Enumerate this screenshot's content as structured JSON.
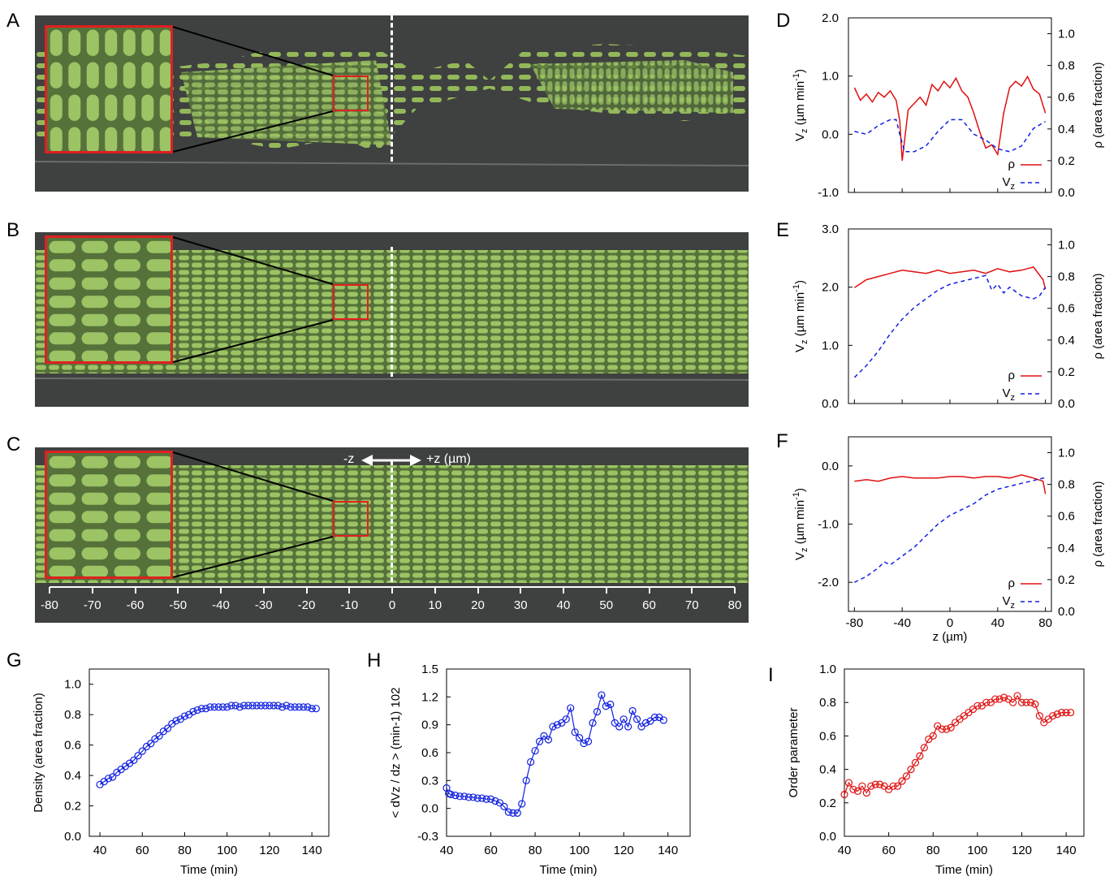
{
  "panels": {
    "A": "A",
    "B": "B",
    "C": "C",
    "D": "D",
    "E": "E",
    "F": "F",
    "G": "G",
    "H": "H",
    "I": "I"
  },
  "micrograph": {
    "direction_left": "-z",
    "direction_right": "+z (µm)",
    "ticks": [
      "-80",
      "-70",
      "-60",
      "-50",
      "-40",
      "-30",
      "-20",
      "-10",
      "0",
      "10",
      "20",
      "30",
      "40",
      "50",
      "60",
      "70",
      "80"
    ]
  },
  "profiles": {
    "left_axis_label": "V",
    "left_axis_sub": "z",
    "left_axis_unit": " (µm min",
    "left_axis_exp": "-1",
    "right_axis_label": "ρ (area fraction)",
    "legend_rho": "ρ",
    "legend_vz": "V",
    "legend_vz_sub": "z",
    "x_label": "z (µm)",
    "right_ticks": [
      "1.0",
      "0.8",
      "0.6",
      "0.4",
      "0.2",
      "0.0"
    ],
    "colors": {
      "rho": "#e01010",
      "vz": "#1020e0"
    }
  },
  "chart_data": [
    {
      "type": "line",
      "panel": "D",
      "xlim": [
        -85,
        85
      ],
      "ylim": [
        -1,
        2
      ],
      "y2lim": [
        0,
        1.1
      ],
      "yticks": [
        "2.0",
        "1.0",
        "0.0",
        "-1.0"
      ],
      "series": [
        {
          "name": "ρ",
          "axis": "right",
          "x": [
            -80,
            -75,
            -70,
            -65,
            -60,
            -55,
            -50,
            -45,
            -42,
            -40,
            -35,
            -30,
            -25,
            -20,
            -15,
            -10,
            -5,
            0,
            5,
            10,
            15,
            20,
            25,
            30,
            35,
            40,
            45,
            50,
            55,
            60,
            65,
            70,
            75,
            80
          ],
          "values": [
            0.66,
            0.58,
            0.62,
            0.57,
            0.63,
            0.6,
            0.64,
            0.58,
            0.45,
            0.2,
            0.52,
            0.56,
            0.6,
            0.55,
            0.68,
            0.64,
            0.7,
            0.66,
            0.72,
            0.64,
            0.6,
            0.5,
            0.38,
            0.28,
            0.3,
            0.24,
            0.5,
            0.66,
            0.7,
            0.67,
            0.73,
            0.65,
            0.62,
            0.5
          ]
        },
        {
          "name": "Vz",
          "axis": "left",
          "x": [
            -80,
            -70,
            -60,
            -50,
            -45,
            -42,
            -38,
            -30,
            -20,
            -10,
            0,
            10,
            20,
            30,
            40,
            50,
            60,
            70,
            80
          ],
          "values": [
            0.05,
            0.0,
            0.15,
            0.25,
            0.25,
            0.0,
            -0.3,
            -0.3,
            -0.2,
            0.05,
            0.25,
            0.25,
            0.0,
            -0.1,
            -0.25,
            -0.3,
            -0.2,
            0.1,
            0.22
          ]
        }
      ]
    },
    {
      "type": "line",
      "panel": "E",
      "xlim": [
        -85,
        85
      ],
      "ylim": [
        0,
        3
      ],
      "y2lim": [
        0,
        1.1
      ],
      "yticks": [
        "3.0",
        "2.0",
        "1.0",
        "0.0"
      ],
      "series": [
        {
          "name": "ρ",
          "axis": "right",
          "x": [
            -80,
            -70,
            -60,
            -50,
            -40,
            -30,
            -20,
            -10,
            0,
            10,
            20,
            30,
            40,
            50,
            60,
            70,
            78,
            80
          ],
          "values": [
            0.73,
            0.78,
            0.8,
            0.82,
            0.84,
            0.83,
            0.82,
            0.84,
            0.82,
            0.83,
            0.84,
            0.82,
            0.85,
            0.83,
            0.84,
            0.86,
            0.78,
            0.72
          ]
        },
        {
          "name": "Vz",
          "axis": "left",
          "x": [
            -80,
            -70,
            -60,
            -50,
            -40,
            -30,
            -20,
            -10,
            0,
            10,
            20,
            30,
            35,
            40,
            45,
            50,
            60,
            70,
            75,
            80
          ],
          "values": [
            0.45,
            0.65,
            0.9,
            1.2,
            1.45,
            1.65,
            1.8,
            1.95,
            2.05,
            2.1,
            2.15,
            2.2,
            1.95,
            2.05,
            1.9,
            2.0,
            1.85,
            1.8,
            1.85,
            2.0
          ]
        }
      ]
    },
    {
      "type": "line",
      "panel": "F",
      "xlim": [
        -85,
        85
      ],
      "ylim": [
        -2.5,
        0.5
      ],
      "y2lim": [
        0,
        1.1
      ],
      "yticks": [
        "0.0",
        "-1.0",
        "-2.0"
      ],
      "xticks": [
        "-80",
        "-40",
        "0",
        "40",
        "80"
      ],
      "series": [
        {
          "name": "ρ",
          "axis": "right",
          "x": [
            -80,
            -70,
            -60,
            -50,
            -40,
            -30,
            -20,
            -10,
            0,
            10,
            20,
            30,
            40,
            50,
            60,
            70,
            78,
            80
          ],
          "values": [
            0.82,
            0.83,
            0.82,
            0.84,
            0.85,
            0.84,
            0.84,
            0.84,
            0.85,
            0.85,
            0.84,
            0.85,
            0.85,
            0.84,
            0.86,
            0.84,
            0.82,
            0.74
          ]
        },
        {
          "name": "Vz",
          "axis": "left",
          "x": [
            -80,
            -70,
            -60,
            -55,
            -50,
            -40,
            -30,
            -20,
            -10,
            0,
            10,
            20,
            30,
            40,
            50,
            60,
            70,
            80
          ],
          "values": [
            -2.0,
            -1.9,
            -1.75,
            -1.65,
            -1.7,
            -1.55,
            -1.4,
            -1.2,
            -1.0,
            -0.85,
            -0.75,
            -0.65,
            -0.5,
            -0.4,
            -0.35,
            -0.3,
            -0.25,
            -0.2
          ]
        }
      ]
    },
    {
      "type": "line",
      "panel": "G",
      "xlabel": "Time (min)",
      "ylabel": "Density (area fraction)",
      "xlim": [
        35,
        148
      ],
      "ylim": [
        0,
        1.1
      ],
      "xticks": [
        "40",
        "60",
        "80",
        "100",
        "120",
        "140"
      ],
      "yticks": [
        "1.0",
        "0.8",
        "0.6",
        "0.4",
        "0.2",
        "0.0"
      ],
      "series": [
        {
          "name": "",
          "x": [
            40,
            42,
            44,
            46,
            48,
            50,
            52,
            54,
            56,
            58,
            60,
            62,
            64,
            66,
            68,
            70,
            72,
            74,
            76,
            78,
            80,
            82,
            84,
            86,
            88,
            90,
            92,
            94,
            96,
            98,
            100,
            102,
            104,
            106,
            108,
            110,
            112,
            114,
            116,
            118,
            120,
            122,
            124,
            126,
            128,
            130,
            132,
            134,
            136,
            138,
            140,
            142
          ],
          "values": [
            0.34,
            0.36,
            0.38,
            0.39,
            0.42,
            0.44,
            0.46,
            0.48,
            0.5,
            0.53,
            0.56,
            0.59,
            0.61,
            0.64,
            0.66,
            0.69,
            0.71,
            0.74,
            0.76,
            0.77,
            0.79,
            0.8,
            0.82,
            0.83,
            0.84,
            0.84,
            0.85,
            0.85,
            0.85,
            0.85,
            0.85,
            0.86,
            0.86,
            0.85,
            0.86,
            0.86,
            0.86,
            0.86,
            0.86,
            0.86,
            0.86,
            0.86,
            0.86,
            0.85,
            0.86,
            0.85,
            0.85,
            0.85,
            0.85,
            0.85,
            0.84,
            0.84
          ]
        }
      ]
    },
    {
      "type": "line",
      "panel": "H",
      "xlabel": "Time (min)",
      "ylabel": "< dVz / dz > (min-1) 102",
      "xlim": [
        40,
        150
      ],
      "ylim": [
        -0.3,
        1.5
      ],
      "xticks": [
        "40",
        "60",
        "80",
        "100",
        "120",
        "140"
      ],
      "yticks": [
        "1.5",
        "1.2",
        "0.9",
        "0.6",
        "0.3",
        "0.0",
        "-0.3"
      ],
      "series": [
        {
          "name": "",
          "x": [
            40,
            41,
            42,
            44,
            46,
            48,
            50,
            52,
            54,
            56,
            58,
            60,
            62,
            64,
            66,
            68,
            70,
            72,
            74,
            76,
            78,
            80,
            82,
            84,
            86,
            88,
            90,
            92,
            94,
            96,
            98,
            100,
            102,
            104,
            106,
            108,
            110,
            112,
            114,
            116,
            118,
            120,
            122,
            124,
            126,
            128,
            130,
            132,
            134,
            136,
            138
          ],
          "values": [
            0.22,
            0.16,
            0.15,
            0.14,
            0.13,
            0.13,
            0.12,
            0.12,
            0.11,
            0.11,
            0.1,
            0.1,
            0.08,
            0.06,
            0.02,
            -0.04,
            -0.05,
            -0.05,
            0.05,
            0.3,
            0.5,
            0.62,
            0.72,
            0.78,
            0.74,
            0.88,
            0.9,
            0.92,
            0.96,
            1.08,
            0.82,
            0.76,
            0.7,
            0.72,
            0.92,
            1.04,
            1.22,
            1.1,
            1.12,
            0.92,
            0.88,
            0.96,
            0.88,
            1.05,
            0.96,
            0.88,
            0.92,
            0.94,
            0.98,
            0.98,
            0.95
          ]
        }
      ]
    },
    {
      "type": "line",
      "panel": "I",
      "xlabel": "Time (min)",
      "ylabel": "Order parameter",
      "xlim": [
        40,
        148
      ],
      "ylim": [
        0,
        1.0
      ],
      "xticks": [
        "40",
        "60",
        "80",
        "100",
        "120",
        "140"
      ],
      "yticks": [
        "1.0",
        "0.8",
        "0.6",
        "0.4",
        "0.2",
        "0.0"
      ],
      "series": [
        {
          "name": "",
          "x": [
            40,
            42,
            44,
            46,
            48,
            50,
            52,
            54,
            56,
            58,
            60,
            62,
            64,
            66,
            68,
            70,
            72,
            74,
            76,
            78,
            80,
            82,
            84,
            86,
            88,
            90,
            92,
            94,
            96,
            98,
            100,
            102,
            104,
            106,
            108,
            110,
            112,
            114,
            116,
            118,
            120,
            122,
            124,
            126,
            128,
            130,
            132,
            134,
            136,
            138,
            140,
            142
          ],
          "values": [
            0.25,
            0.32,
            0.28,
            0.27,
            0.3,
            0.26,
            0.3,
            0.31,
            0.31,
            0.3,
            0.28,
            0.3,
            0.3,
            0.33,
            0.36,
            0.4,
            0.44,
            0.48,
            0.53,
            0.58,
            0.6,
            0.66,
            0.64,
            0.64,
            0.65,
            0.68,
            0.7,
            0.72,
            0.74,
            0.76,
            0.78,
            0.78,
            0.8,
            0.8,
            0.82,
            0.82,
            0.83,
            0.82,
            0.8,
            0.84,
            0.8,
            0.8,
            0.8,
            0.79,
            0.72,
            0.68,
            0.7,
            0.72,
            0.73,
            0.74,
            0.74,
            0.74
          ]
        }
      ]
    }
  ]
}
